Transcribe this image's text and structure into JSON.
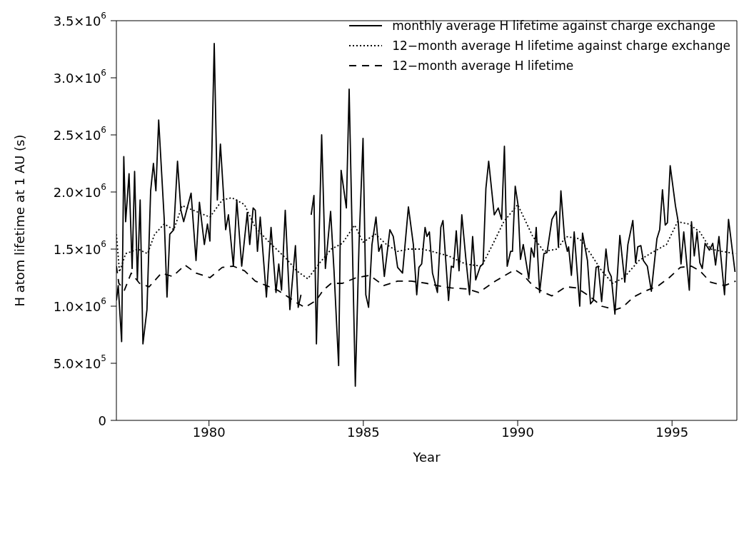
{
  "chart_data": {
    "type": "line",
    "xlabel": "Year",
    "ylabel": "H atom lifetime at 1 AU (s)",
    "xlim": [
      1977,
      1997.1
    ],
    "xticks": [
      1980,
      1985,
      1990,
      1995
    ],
    "ylim": [
      0,
      3500000
    ],
    "yticks": [
      0,
      {
        "value": 500000,
        "label": "5.0×10$^{5}$"
      },
      {
        "value": 1000000,
        "label": "1.0×10$^{6}$"
      },
      {
        "value": 1500000,
        "label": "1.5×10$^{6}$"
      },
      {
        "value": 2000000,
        "label": "2.0×10$^{6}$"
      },
      {
        "value": 2500000,
        "label": "2.5×10$^{6}$"
      },
      {
        "value": 3000000,
        "label": "3.0×10$^{6}$"
      },
      {
        "value": 3500000,
        "label": "3.5×10$^{6}$"
      }
    ],
    "grid": false,
    "legend": "top right",
    "marker": "none",
    "series": [
      {
        "name": "monthly average H lifetime against charge exchange",
        "color": "#000000",
        "line_style": "solid",
        "x": [
          1977.0,
          1977.06,
          1977.17,
          1977.24,
          1977.3,
          1977.41,
          1977.51,
          1977.59,
          1977.68,
          1977.77,
          1977.86,
          1977.99,
          1978.11,
          1978.2,
          1978.28,
          1978.37,
          1978.55,
          1978.64,
          1978.73,
          1978.86,
          1978.98,
          1979.09,
          1979.18,
          1979.42,
          1979.58,
          1979.69,
          1979.85,
          1979.95,
          1980.03,
          1980.17,
          1980.27,
          1980.37,
          1980.54,
          1980.63,
          1980.79,
          1980.9,
          1981.06,
          1981.24,
          1981.32,
          1981.43,
          1981.5,
          1981.57,
          1981.66,
          1981.86,
          1982.01,
          1982.17,
          1982.26,
          1982.35,
          1982.47,
          1982.62,
          1982.8,
          1982.89,
          1982.98
        ],
        "values": [
          1050000,
          1180000,
          690000,
          2310000,
          1740000,
          2160000,
          1330000,
          2180000,
          1230000,
          1930000,
          670000,
          970000,
          2010000,
          2250000,
          2010000,
          2630000,
          1760000,
          1080000,
          1630000,
          1670000,
          2270000,
          1840000,
          1740000,
          1990000,
          1400000,
          1910000,
          1540000,
          1720000,
          1570000,
          3300000,
          1930000,
          2420000,
          1670000,
          1800000,
          1350000,
          1930000,
          1350000,
          1820000,
          1540000,
          1860000,
          1840000,
          1480000,
          1780000,
          1080000,
          1690000,
          1120000,
          1370000,
          1140000,
          1840000,
          970000,
          1530000,
          990000,
          1100000
        ]
      },
      {
        "color": "#000000",
        "line_style": "solid",
        "x": [
          1983.31,
          1983.4,
          1983.48,
          1983.65,
          1983.77,
          1983.94,
          1984.05,
          1984.2,
          1984.28,
          1984.45,
          1984.54,
          1984.74,
          1984.86,
          1984.99,
          1985.08,
          1985.17,
          1985.28,
          1985.41,
          1985.5,
          1985.59,
          1985.68,
          1985.86,
          1985.97,
          1986.11,
          1986.27,
          1986.46,
          1986.62,
          1986.73,
          1986.8,
          1986.89,
          1987.0,
          1987.06,
          1987.14,
          1987.24,
          1987.4,
          1987.51,
          1987.58,
          1987.76,
          1987.85,
          1987.92,
          1988.01,
          1988.1,
          1988.19,
          1988.32,
          1988.44,
          1988.54,
          1988.64,
          1988.79,
          1988.88,
          1988.97,
          1989.06,
          1989.24,
          1989.37,
          1989.48,
          1989.57,
          1989.66,
          1989.77,
          1989.83,
          1989.92,
          1990.01,
          1990.09,
          1990.18,
          1990.36,
          1990.44,
          1990.53,
          1990.6,
          1990.71,
          1990.85,
          1990.95,
          1991.11,
          1991.25,
          1991.32,
          1991.4,
          1991.52,
          1991.61,
          1991.65,
          1991.74,
          1991.83,
          1992.01,
          1992.1,
          1992.26,
          1992.36,
          1992.45,
          1992.54,
          1992.61,
          1992.72,
          1992.86,
          1992.94,
          1993.03,
          1993.15,
          1993.31,
          1993.47,
          1993.57,
          1993.73,
          1993.82,
          1993.89,
          1993.99,
          1994.07,
          1994.2,
          1994.33,
          1994.51,
          1994.6,
          1994.69,
          1994.78,
          1994.85,
          1994.94,
          1995.11,
          1995.2,
          1995.29,
          1995.38,
          1995.56,
          1995.63,
          1995.72,
          1995.81,
          1995.9,
          1995.98,
          1996.07,
          1996.21,
          1996.32,
          1996.41,
          1996.52,
          1996.7,
          1996.83,
          1997.04
        ],
        "values": [
          1800000,
          1970000,
          670000,
          2500000,
          1330000,
          1830000,
          1310000,
          480000,
          2190000,
          1860000,
          2900000,
          300000,
          1540000,
          2470000,
          1100000,
          990000,
          1540000,
          1780000,
          1480000,
          1540000,
          1260000,
          1670000,
          1610000,
          1340000,
          1290000,
          1870000,
          1540000,
          1100000,
          1340000,
          1370000,
          1690000,
          1610000,
          1650000,
          1290000,
          1120000,
          1690000,
          1750000,
          1050000,
          1350000,
          1340000,
          1660000,
          1310000,
          1800000,
          1420000,
          1100000,
          1610000,
          1230000,
          1350000,
          1370000,
          2030000,
          2270000,
          1800000,
          1860000,
          1760000,
          2400000,
          1350000,
          1480000,
          1480000,
          2050000,
          1890000,
          1410000,
          1540000,
          1240000,
          1510000,
          1430000,
          1690000,
          1120000,
          1460000,
          1470000,
          1760000,
          1830000,
          1520000,
          2010000,
          1590000,
          1480000,
          1520000,
          1270000,
          1650000,
          1000000,
          1640000,
          1400000,
          1020000,
          1050000,
          1340000,
          1350000,
          1040000,
          1500000,
          1310000,
          1260000,
          930000,
          1620000,
          1210000,
          1540000,
          1750000,
          1380000,
          1520000,
          1530000,
          1400000,
          1350000,
          1130000,
          1590000,
          1670000,
          2020000,
          1710000,
          1730000,
          2230000,
          1880000,
          1740000,
          1370000,
          1650000,
          1140000,
          1740000,
          1440000,
          1650000,
          1380000,
          1330000,
          1550000,
          1490000,
          1550000,
          1360000,
          1610000,
          1100000,
          1760000,
          1300000
        ]
      },
      {
        "name": "12−month average H lifetime against charge exchange",
        "color": "#000000",
        "line_style": "dotted",
        "x": [
          1977.0,
          1977.1,
          1977.3,
          1977.7,
          1978.01,
          1978.24,
          1978.55,
          1978.86,
          1979.13,
          1979.49,
          1980.03,
          1980.43,
          1980.74,
          1981.15,
          1981.5,
          1981.95,
          1982.49,
          1982.84,
          1983.2,
          1983.56,
          1983.96,
          1984.32,
          1984.72,
          1984.99,
          1985.39,
          1985.75,
          1986.11,
          1986.46,
          1986.91,
          1987.22,
          1987.76,
          1988.3,
          1988.83,
          1989.19,
          1989.55,
          1990.0,
          1990.49,
          1990.85,
          1991.29,
          1991.56,
          1992.01,
          1992.36,
          1992.72,
          1993.08,
          1993.44,
          1993.93,
          1994.29,
          1994.82,
          1995.18,
          1995.54,
          1995.9,
          1996.25,
          1996.61,
          1997.06
        ],
        "values": [
          1630000,
          1300000,
          1460000,
          1500000,
          1460000,
          1630000,
          1720000,
          1670000,
          1880000,
          1840000,
          1780000,
          1930000,
          1950000,
          1890000,
          1690000,
          1560000,
          1420000,
          1310000,
          1240000,
          1370000,
          1500000,
          1550000,
          1710000,
          1560000,
          1630000,
          1540000,
          1480000,
          1500000,
          1500000,
          1480000,
          1440000,
          1370000,
          1350000,
          1540000,
          1740000,
          1890000,
          1610000,
          1480000,
          1500000,
          1610000,
          1590000,
          1460000,
          1310000,
          1200000,
          1250000,
          1400000,
          1460000,
          1540000,
          1740000,
          1720000,
          1650000,
          1500000,
          1480000,
          1460000
        ]
      },
      {
        "name": "12−month average H lifetime",
        "color": "#000000",
        "line_style": "dashed",
        "x": [
          1977.0,
          1977.08,
          1977.26,
          1977.48,
          1977.75,
          1978.06,
          1978.46,
          1978.82,
          1979.22,
          1979.58,
          1980.03,
          1980.43,
          1980.79,
          1981.15,
          1981.5,
          1981.86,
          1982.22,
          1982.57,
          1982.84,
          1983.11,
          1983.47,
          1983.7,
          1983.96,
          1984.32,
          1984.77,
          1985.21,
          1985.66,
          1986.11,
          1986.55,
          1987.05,
          1987.4,
          1987.85,
          1988.39,
          1988.74,
          1989.28,
          1989.91,
          1990.19,
          1990.49,
          1990.85,
          1991.11,
          1991.56,
          1991.92,
          1992.36,
          1992.72,
          1993.17,
          1993.4,
          1993.75,
          1994.11,
          1994.56,
          1994.91,
          1995.27,
          1995.63,
          1995.9,
          1996.25,
          1996.7,
          1997.06
        ],
        "values": [
          1350000,
          1200000,
          1140000,
          1290000,
          1200000,
          1170000,
          1290000,
          1260000,
          1360000,
          1290000,
          1250000,
          1340000,
          1350000,
          1310000,
          1220000,
          1180000,
          1140000,
          1080000,
          1030000,
          990000,
          1050000,
          1140000,
          1200000,
          1200000,
          1250000,
          1270000,
          1180000,
          1220000,
          1220000,
          1200000,
          1180000,
          1160000,
          1150000,
          1120000,
          1220000,
          1320000,
          1270000,
          1180000,
          1120000,
          1090000,
          1170000,
          1160000,
          1080000,
          1000000,
          970000,
          990000,
          1080000,
          1130000,
          1180000,
          1250000,
          1340000,
          1350000,
          1310000,
          1210000,
          1180000,
          1220000
        ]
      }
    ]
  }
}
